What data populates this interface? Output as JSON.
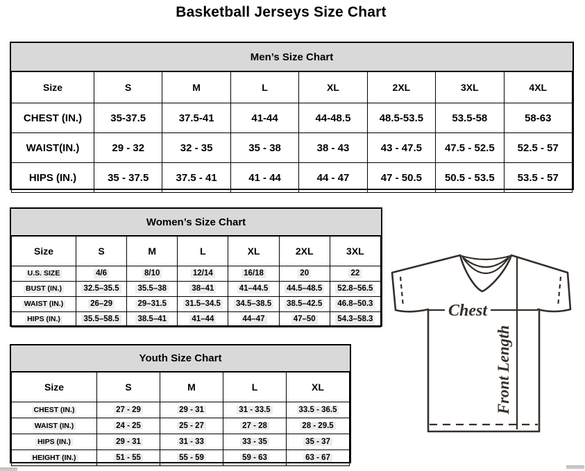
{
  "page_title": "Basketball Jerseys Size Chart",
  "mens": {
    "title": "Men’s Size Chart",
    "columns": [
      "Size",
      "S",
      "M",
      "L",
      "XL",
      "2XL",
      "3XL",
      "4XL"
    ],
    "rows": [
      {
        "label": "CHEST (IN.)",
        "values": [
          "35-37.5",
          "37.5-41",
          "41-44",
          "44-48.5",
          "48.5-53.5",
          "53.5-58",
          "58-63"
        ]
      },
      {
        "label": "WAIST(IN.)",
        "values": [
          "29 - 32",
          "32 - 35",
          "35 - 38",
          "38 - 43",
          "43 - 47.5",
          "47.5 - 52.5",
          "52.5 - 57"
        ]
      },
      {
        "label": "HIPS (IN.)",
        "values": [
          "35 - 37.5",
          "37.5 - 41",
          "41 - 44",
          "44 - 47",
          "47 - 50.5",
          "50.5 - 53.5",
          "53.5 - 57"
        ]
      }
    ]
  },
  "womens": {
    "title": "Women’s Size Chart",
    "columns": [
      "Size",
      "S",
      "M",
      "L",
      "XL",
      "2XL",
      "3XL"
    ],
    "rows": [
      {
        "label": "U.S. SIZE",
        "values": [
          "4/6",
          "8/10",
          "12/14",
          "16/18",
          "20",
          "22"
        ]
      },
      {
        "label": "BUST (IN.)",
        "values": [
          "32.5–35.5",
          "35.5–38",
          "38–41",
          "41–44.5",
          "44.5–48.5",
          "52.8–56.5"
        ]
      },
      {
        "label": "WAIST (IN.)",
        "values": [
          "26–29",
          "29–31.5",
          "31.5–34.5",
          "34.5–38.5",
          "38.5–42.5",
          "46.8–50.3"
        ]
      },
      {
        "label": "HIPS (IN.)",
        "values": [
          "35.5–58.5",
          "38.5–41",
          "41–44",
          "44–47",
          "47–50",
          "54.3–58.3"
        ]
      }
    ]
  },
  "youth": {
    "title": "Youth Size Chart",
    "columns": [
      "Size",
      "S",
      "M",
      "L",
      "XL"
    ],
    "rows": [
      {
        "label": "CHEST (IN.)",
        "values": [
          "27 - 29",
          "29 - 31",
          "31 - 33.5",
          "33.5 - 36.5"
        ]
      },
      {
        "label": "WAIST (IN.)",
        "values": [
          "24 - 25",
          "25 - 27",
          "27 - 28",
          "28 - 29.5"
        ]
      },
      {
        "label": "HIPS (IN.)",
        "values": [
          "29 - 31",
          "31 - 33",
          "33 - 35",
          "35 - 37"
        ]
      },
      {
        "label": "HEIGHT (IN.)",
        "values": [
          "51 - 55",
          "55 - 59",
          "59 - 63",
          "63 - 67"
        ]
      }
    ]
  },
  "diagram": {
    "chest_label": "Chest",
    "front_length_label": "Front Length"
  },
  "colors": {
    "band_bg": "#d9d9d9",
    "table_border": "#000000",
    "text_highlight": "#ececec",
    "jersey_line": "#362e29"
  }
}
